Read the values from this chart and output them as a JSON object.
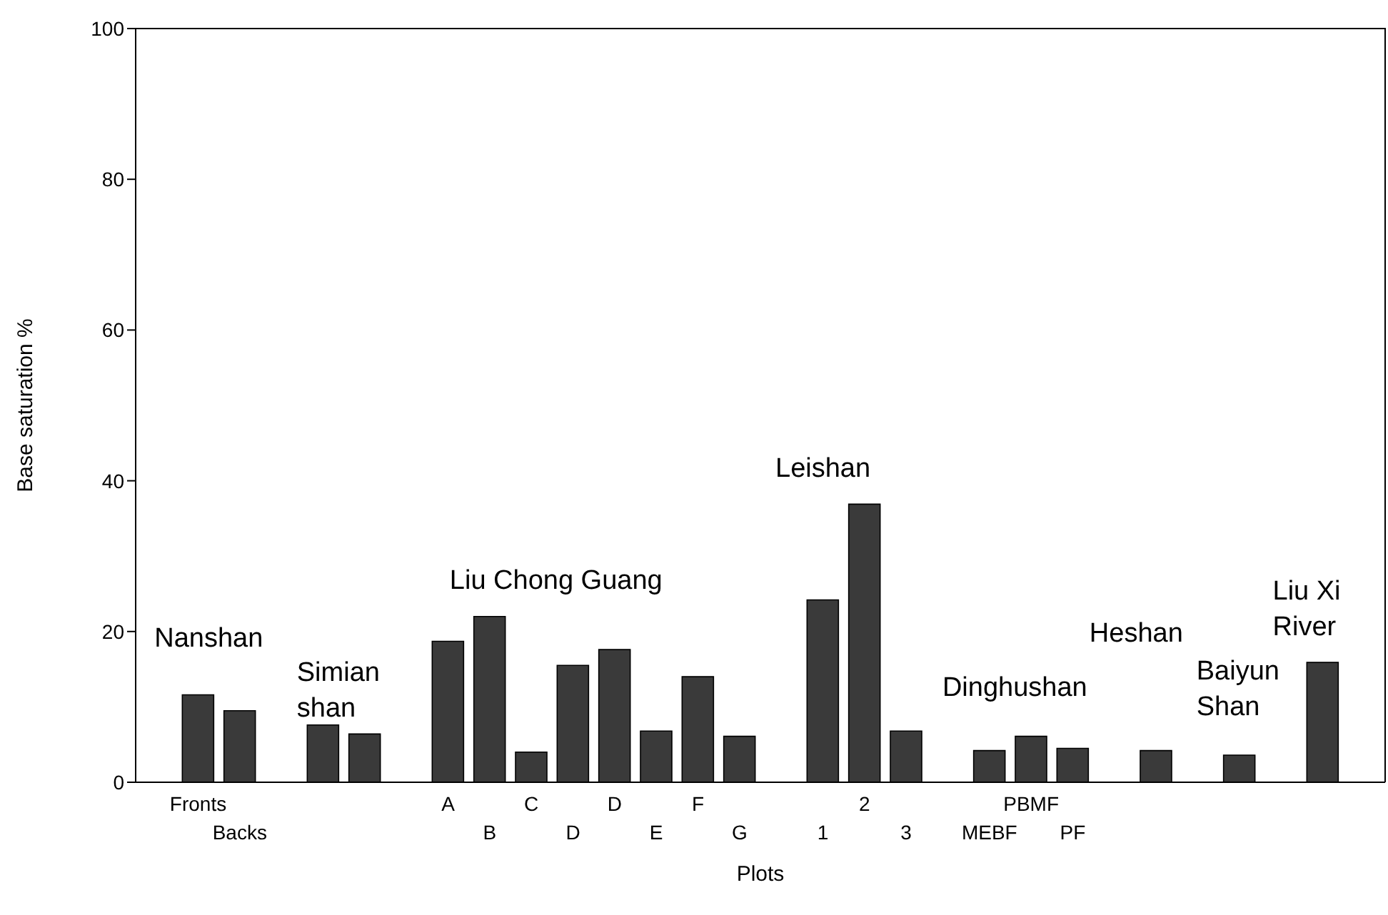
{
  "chart_data": {
    "type": "bar",
    "xlabel": "Plots",
    "ylabel": "Base saturation %",
    "categories": [
      null,
      "Fronts",
      "Backs",
      null,
      null,
      null,
      null,
      "A",
      "B",
      "C",
      "D",
      "D",
      "E",
      "F",
      "G",
      null,
      "1",
      "2",
      "3",
      null,
      "MEBF",
      "PBMF",
      "PF",
      null,
      null,
      null,
      null,
      null,
      null,
      null
    ],
    "values": [
      null,
      11.6,
      9.5,
      null,
      7.6,
      6.4,
      null,
      18.7,
      22,
      4,
      15.5,
      17.6,
      6.8,
      14,
      6.1,
      null,
      24.2,
      36.9,
      6.8,
      null,
      4.2,
      6.1,
      4.5,
      null,
      4.2,
      null,
      3.6,
      null,
      15.9,
      null
    ],
    "color": "#3a3a3a",
    "ylim": [
      0,
      100
    ],
    "yticks": [
      0,
      20,
      40,
      60,
      80,
      100
    ],
    "annotations": [
      "Nanshan",
      "Simian shan",
      "Liu Chong Guang",
      "Leishan",
      "Dinghushan",
      "Heshan",
      "Baiyun Shan",
      "Liu Xi River"
    ]
  }
}
